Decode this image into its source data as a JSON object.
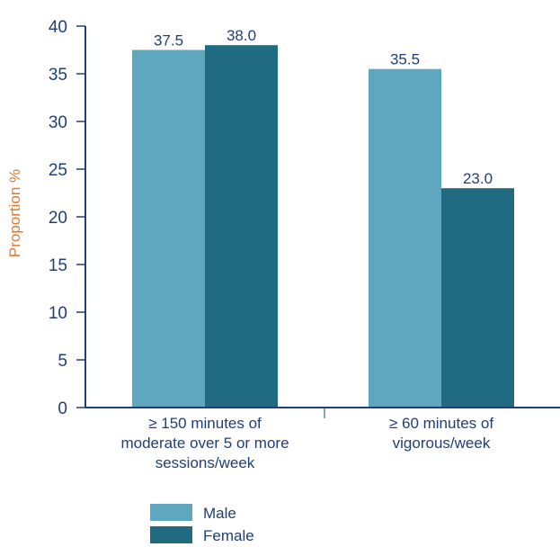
{
  "chart_data": {
    "type": "bar",
    "title": "",
    "xlabel": "",
    "ylabel": "Proportion %",
    "ylim": [
      0,
      40
    ],
    "yticks": [
      0,
      5,
      10,
      15,
      20,
      25,
      30,
      35,
      40
    ],
    "categories": [
      [
        "≥ 150 minutes of",
        "moderate over 5 or more",
        "sessions/week"
      ],
      [
        "≥ 60 minutes of",
        "vigorous/week"
      ]
    ],
    "series": [
      {
        "name": "Male",
        "values": [
          37.5,
          35.5
        ],
        "value_labels": [
          "37.5",
          "35.5"
        ],
        "color": "#5ea7bf"
      },
      {
        "name": "Female",
        "values": [
          38.0,
          23.0
        ],
        "value_labels": [
          "38.0",
          "23.0"
        ],
        "color": "#206b82"
      }
    ],
    "grid": false,
    "legend_position": "bottom"
  },
  "colors": {
    "axis": "#1f3f78",
    "text": "#1f3f78",
    "ylabel": "#e5782b"
  }
}
